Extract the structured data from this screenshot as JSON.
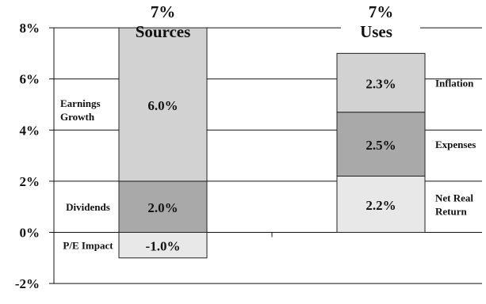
{
  "colors": {
    "light": "#d2d2d2",
    "dark": "#a9a9a9",
    "pale": "#e8e8e8",
    "stroke": "#222222",
    "grid": "#111111"
  },
  "chart_data": {
    "type": "bar",
    "stacked": true,
    "ylim": [
      -2,
      8
    ],
    "yticks": [
      8,
      6,
      4,
      2,
      0,
      -2
    ],
    "ytick_labels": [
      "8%",
      "6%",
      "4%",
      "2%",
      "0%",
      "-2%"
    ],
    "grid": true,
    "bars": [
      {
        "total_label": "7%",
        "title": "Sources",
        "segments": [
          {
            "name": "P/E Impact",
            "value": -1.0,
            "label": "-1.0%",
            "shade": "pale"
          },
          {
            "name": "Dividends",
            "value": 2.0,
            "label": "2.0%",
            "shade": "dark"
          },
          {
            "name": "Earnings Growth",
            "value": 6.0,
            "label": "6.0%",
            "shade": "light"
          }
        ]
      },
      {
        "total_label": "7%",
        "title": "Uses",
        "segments": [
          {
            "name": "Net Real Return",
            "value": 2.2,
            "label": "2.2%",
            "shade": "pale"
          },
          {
            "name": "Expenses",
            "value": 2.5,
            "label": "2.5%",
            "shade": "dark"
          },
          {
            "name": "Inflation",
            "value": 2.3,
            "label": "2.3%",
            "shade": "light"
          }
        ]
      }
    ]
  }
}
